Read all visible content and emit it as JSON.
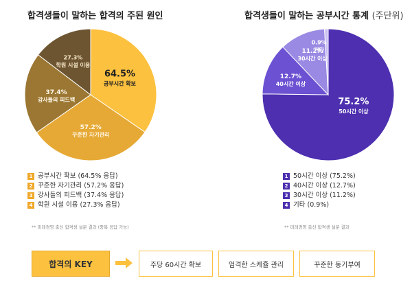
{
  "left": {
    "title": "합격생들이 말하는 합격의 주된 원인",
    "note": "** 미래경영 출신 합격생 설문 결과 (중복 응답 가능)",
    "legend": [
      "공부시간 확보 (64.5% 응답)",
      "꾸준한 자기관리 (57.2% 응답)",
      "강사들의 피드백 (37.4% 응답)",
      "학원 시설 이용 (27.3% 응답)"
    ]
  },
  "right": {
    "title": "합격생들이 말하는 공부시간 통계",
    "title_unit": "(주단위)",
    "note": "** 미래경영 출신 합격생 설문 결과",
    "legend": [
      "50시간 이상 (75.2%)",
      "40시간 이상 (12.7%)",
      "30시간 이상 (11.2%)",
      "기타 (0.9%)"
    ]
  },
  "legend_numbers": [
    "1",
    "2",
    "3",
    "4"
  ],
  "bottom": {
    "key_label": "합격의 KEY",
    "items": [
      "주당 60시간 확보",
      "엄격한 스케쥴 관리",
      "꾸준한 동기부여"
    ]
  },
  "colors": {
    "accent": "#fcc13f",
    "left_slices": [
      "#fcc13f",
      "#e6a935",
      "#9b7733",
      "#6e5531"
    ],
    "right_slices": [
      "#4d2fb0",
      "#6c52d2",
      "#9a8ae3",
      "#c9bff0"
    ],
    "left_legend_box": "#f0a82a",
    "right_legend_box": "#4d2fb0"
  },
  "chart_data": [
    {
      "type": "pie",
      "title": "합격생들이 말하는 합격의 주된 원인",
      "slices": [
        {
          "label": "공부시간 확보",
          "value": 64.5,
          "pct_text": "64.5%"
        },
        {
          "label": "꾸준한 자기관리",
          "value": 57.2,
          "pct_text": "57.2%"
        },
        {
          "label": "강사들의 피드백",
          "value": 37.4,
          "pct_text": "37.4%"
        },
        {
          "label": "학원 시설 이용",
          "value": 27.3,
          "pct_text": "27.3%"
        }
      ]
    },
    {
      "type": "pie",
      "title": "합격생들이 말하는 공부시간 통계 (주단위)",
      "slices": [
        {
          "label": "50시간 이상",
          "value": 75.2,
          "pct_text": "75.2%"
        },
        {
          "label": "40시간 이상",
          "value": 12.7,
          "pct_text": "12.7%"
        },
        {
          "label": "30시간 이상",
          "value": 11.2,
          "pct_text": "11.2%"
        },
        {
          "label": "기타",
          "value": 0.9,
          "pct_text": "0.9%"
        }
      ]
    }
  ]
}
